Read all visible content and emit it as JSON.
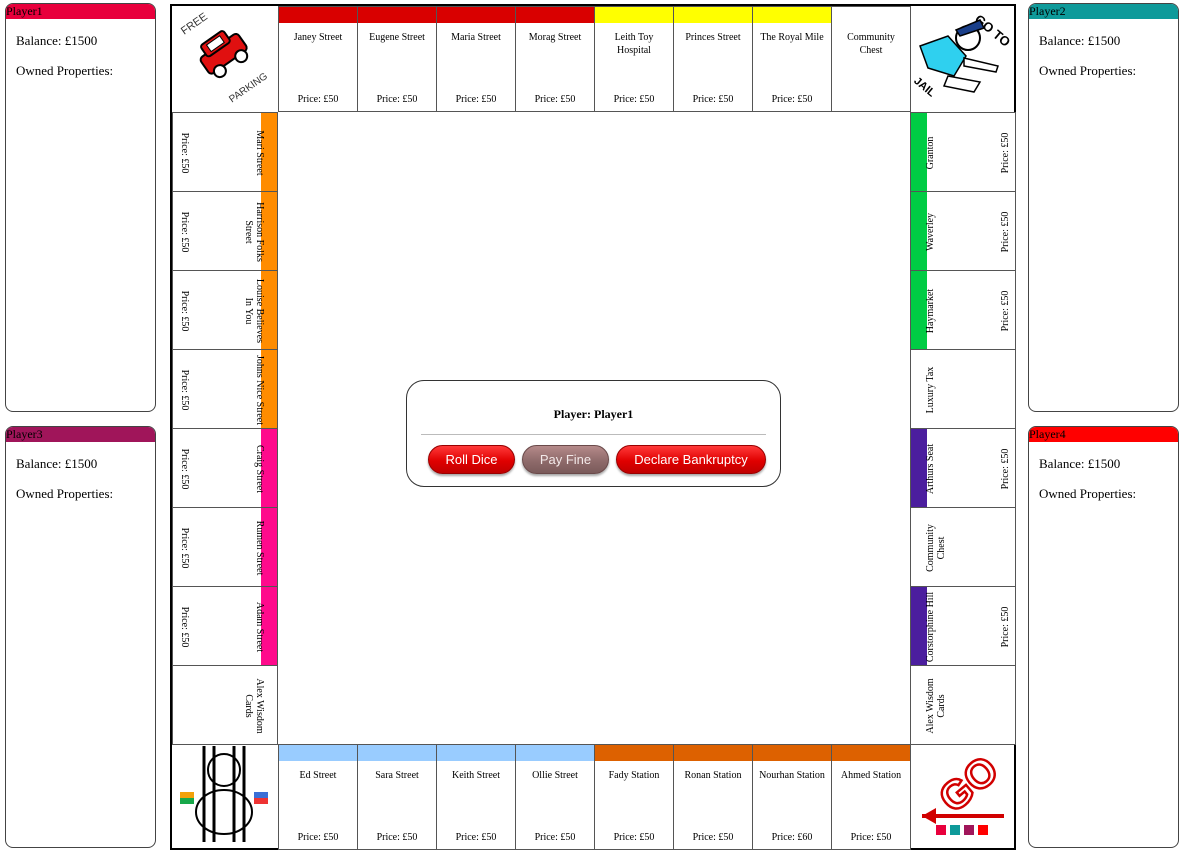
{
  "players": [
    {
      "id": "p1",
      "name": "Player1",
      "color": "#e8003c",
      "balance": "Balance: £1500",
      "owned": "Owned Properties:"
    },
    {
      "id": "p2",
      "name": "Player2",
      "color": "#0e9a9a",
      "balance": "Balance: £1500",
      "owned": "Owned Properties:"
    },
    {
      "id": "p3",
      "name": "Player3",
      "color": "#a0155a",
      "balance": "Balance: £1500",
      "owned": "Owned Properties:"
    },
    {
      "id": "p4",
      "name": "Player4",
      "color": "#ff0000",
      "balance": "Balance: £1500",
      "owned": "Owned Properties:"
    }
  ],
  "corners": {
    "free_parking": {
      "line1": "FREE",
      "line2": "PARKING"
    },
    "go_to_jail": {
      "line1": "GO TO",
      "line2": "JAIL"
    },
    "go": {
      "label": "GO"
    }
  },
  "top_row": [
    {
      "name": "Janey Street",
      "price": "Price: £50",
      "color": "#d90000"
    },
    {
      "name": "Eugene Street",
      "price": "Price: £50",
      "color": "#d90000"
    },
    {
      "name": "Maria Street",
      "price": "Price: £50",
      "color": "#d90000"
    },
    {
      "name": "Morag Street",
      "price": "Price: £50",
      "color": "#d90000"
    },
    {
      "name": "Leith Toy Hospital",
      "price": "Price: £50",
      "color": "#ffff00"
    },
    {
      "name": "Princes Street",
      "price": "Price: £50",
      "color": "#ffff00"
    },
    {
      "name": "The Royal Mile",
      "price": "Price: £50",
      "color": "#ffff00"
    },
    {
      "name": "Community Chest",
      "price": "",
      "color": ""
    }
  ],
  "bottom_row": [
    {
      "name": "Ed Street",
      "price": "Price: £50",
      "color": "#99ccff"
    },
    {
      "name": "Sara Street",
      "price": "Price: £50",
      "color": "#99ccff"
    },
    {
      "name": "Keith Street",
      "price": "Price: £50",
      "color": "#99ccff"
    },
    {
      "name": "Ollie Street",
      "price": "Price: £50",
      "color": "#99ccff"
    },
    {
      "name": "Fady Station",
      "price": "Price: £50",
      "color": "#dd6100"
    },
    {
      "name": "Ronan Station",
      "price": "Price: £50",
      "color": "#dd6100"
    },
    {
      "name": "Nourhan Station",
      "price": "Price: £60",
      "color": "#dd6100"
    },
    {
      "name": "Ahmed Station",
      "price": "Price: £50",
      "color": "#dd6100"
    }
  ],
  "left_col": [
    {
      "name": "Mari Street",
      "price": "Price: £50",
      "color": "#ff8c00"
    },
    {
      "name": "Harrison Folks Street",
      "price": "Price: £50",
      "color": "#ff8c00"
    },
    {
      "name": "Louise Believes In You",
      "price": "Price: £50",
      "color": "#ff8c00"
    },
    {
      "name": "Johns Nice Street",
      "price": "Price: £50",
      "color": "#ff8c00"
    },
    {
      "name": "Craig Street",
      "price": "Price: £50",
      "color": "#ff0a8c"
    },
    {
      "name": "Rumen Street",
      "price": "Price: £50",
      "color": "#ff0a8c"
    },
    {
      "name": "Adam Street",
      "price": "Price: £50",
      "color": "#ff0a8c"
    },
    {
      "name": "Alex Wisdom Cards",
      "price": "",
      "color": ""
    }
  ],
  "right_col": [
    {
      "name": "Granton",
      "price": "Price: £50",
      "color": "#00cc44"
    },
    {
      "name": "Waverley",
      "price": "Price: £50",
      "color": "#00cc44"
    },
    {
      "name": "Haymarket",
      "price": "Price: £50",
      "color": "#00cc44"
    },
    {
      "name": "Luxury Tax",
      "price": "",
      "color": ""
    },
    {
      "name": "Arthurs Seat",
      "price": "Price: £50",
      "color": "#4b1e9e"
    },
    {
      "name": "Community Chest",
      "price": "",
      "color": ""
    },
    {
      "name": "Corstorphine Hill",
      "price": "Price: £50",
      "color": "#4b1e9e"
    },
    {
      "name": "Alex Wisdom Cards",
      "price": "",
      "color": ""
    }
  ],
  "control": {
    "current_player": "Player: Player1",
    "roll_dice": "Roll Dice",
    "pay_fine": "Pay Fine",
    "declare_bankruptcy": "Declare Bankruptcy"
  },
  "tokens": [
    "#e8003c",
    "#0e9a9a",
    "#a0155a",
    "#ff0000"
  ]
}
